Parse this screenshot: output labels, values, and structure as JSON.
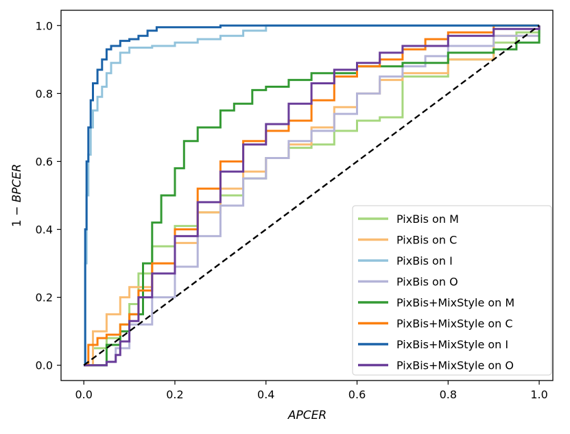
{
  "chart_data": {
    "type": "line",
    "title": "",
    "xlabel": "APCER",
    "ylabel_prefix": "1 − ",
    "ylabel_italic": "BPCER",
    "xlim": [
      -0.05,
      1.03
    ],
    "ylim": [
      -0.045,
      1.045
    ],
    "xticks": [
      0.0,
      0.2,
      0.4,
      0.6,
      0.8,
      1.0
    ],
    "yticks": [
      0.0,
      0.2,
      0.4,
      0.6,
      0.8,
      1.0
    ],
    "xtick_labels": [
      "0.0",
      "0.2",
      "0.4",
      "0.6",
      "0.8",
      "1.0"
    ],
    "ytick_labels": [
      "0.0",
      "0.2",
      "0.4",
      "0.6",
      "0.8",
      "1.0"
    ],
    "grid": false,
    "legend_position": "lower-right",
    "chance_line": {
      "x": [
        0,
        1
      ],
      "y": [
        0,
        1
      ],
      "color": "#000000",
      "style": "dashed"
    },
    "series": [
      {
        "name": "PixBis on M",
        "color": "#a6d77e",
        "x": [
          0,
          0.02,
          0.05,
          0.08,
          0.1,
          0.12,
          0.15,
          0.2,
          0.25,
          0.3,
          0.35,
          0.4,
          0.45,
          0.5,
          0.55,
          0.6,
          0.65,
          0.7,
          0.8,
          0.9,
          0.95,
          1
        ],
        "y": [
          0,
          0.05,
          0.08,
          0.12,
          0.18,
          0.27,
          0.35,
          0.41,
          0.45,
          0.5,
          0.55,
          0.61,
          0.64,
          0.65,
          0.69,
          0.72,
          0.73,
          0.85,
          0.9,
          0.95,
          0.98,
          1
        ]
      },
      {
        "name": "PixBis on C",
        "color": "#f9bc72",
        "x": [
          0,
          0.02,
          0.05,
          0.08,
          0.1,
          0.15,
          0.2,
          0.25,
          0.3,
          0.35,
          0.4,
          0.45,
          0.5,
          0.55,
          0.6,
          0.65,
          0.7,
          0.8,
          0.9,
          1
        ],
        "y": [
          0,
          0.1,
          0.15,
          0.2,
          0.23,
          0.3,
          0.36,
          0.45,
          0.52,
          0.57,
          0.61,
          0.65,
          0.7,
          0.76,
          0.8,
          0.84,
          0.86,
          0.9,
          0.97,
          1
        ]
      },
      {
        "name": "PixBis on I",
        "color": "#92c3dc",
        "x": [
          0,
          0.003,
          0.006,
          0.01,
          0.015,
          0.02,
          0.03,
          0.04,
          0.05,
          0.06,
          0.08,
          0.1,
          0.15,
          0.2,
          0.25,
          0.3,
          0.35,
          0.4,
          0.6,
          0.8,
          1
        ],
        "y": [
          0,
          0.3,
          0.5,
          0.62,
          0.7,
          0.75,
          0.79,
          0.82,
          0.86,
          0.89,
          0.92,
          0.935,
          0.94,
          0.95,
          0.96,
          0.97,
          0.985,
          1,
          1,
          1,
          1
        ]
      },
      {
        "name": "PixBis on O",
        "color": "#b4b4d8",
        "x": [
          0,
          0.05,
          0.07,
          0.1,
          0.15,
          0.2,
          0.25,
          0.3,
          0.35,
          0.4,
          0.45,
          0.5,
          0.55,
          0.6,
          0.65,
          0.7,
          0.75,
          0.8,
          0.9,
          1
        ],
        "y": [
          0,
          0.01,
          0.05,
          0.12,
          0.2,
          0.29,
          0.38,
          0.47,
          0.55,
          0.61,
          0.66,
          0.69,
          0.74,
          0.8,
          0.85,
          0.88,
          0.91,
          0.94,
          0.97,
          1
        ]
      },
      {
        "name": "PixBis+MixStyle on M",
        "color": "#339a33",
        "x": [
          0,
          0.05,
          0.08,
          0.1,
          0.13,
          0.15,
          0.17,
          0.2,
          0.22,
          0.25,
          0.27,
          0.3,
          0.33,
          0.37,
          0.4,
          0.45,
          0.5,
          0.55,
          0.6,
          0.65,
          0.7,
          0.8,
          0.9,
          0.95,
          1
        ],
        "y": [
          0,
          0.06,
          0.1,
          0.15,
          0.3,
          0.42,
          0.5,
          0.58,
          0.66,
          0.7,
          0.7,
          0.75,
          0.77,
          0.81,
          0.82,
          0.84,
          0.86,
          0.86,
          0.88,
          0.88,
          0.89,
          0.92,
          0.93,
          0.95,
          1
        ]
      },
      {
        "name": "PixBis+MixStyle on C",
        "color": "#fb7f0e",
        "x": [
          0,
          0.01,
          0.03,
          0.05,
          0.08,
          0.1,
          0.12,
          0.15,
          0.2,
          0.25,
          0.3,
          0.35,
          0.4,
          0.45,
          0.5,
          0.55,
          0.6,
          0.65,
          0.7,
          0.75,
          0.8,
          0.9,
          1
        ],
        "y": [
          0,
          0.06,
          0.08,
          0.09,
          0.12,
          0.15,
          0.22,
          0.3,
          0.4,
          0.52,
          0.6,
          0.66,
          0.69,
          0.72,
          0.78,
          0.85,
          0.88,
          0.9,
          0.93,
          0.96,
          0.98,
          1,
          1
        ]
      },
      {
        "name": "PixBis+MixStyle on I",
        "color": "#1a62a8",
        "x": [
          0,
          0.003,
          0.006,
          0.01,
          0.015,
          0.02,
          0.03,
          0.04,
          0.05,
          0.06,
          0.08,
          0.1,
          0.12,
          0.14,
          0.16,
          0.2,
          0.3,
          0.4,
          0.6,
          0.8,
          1
        ],
        "y": [
          0,
          0.4,
          0.6,
          0.7,
          0.78,
          0.83,
          0.87,
          0.9,
          0.93,
          0.94,
          0.955,
          0.96,
          0.97,
          0.985,
          0.995,
          0.995,
          1,
          1,
          1,
          1,
          1
        ]
      },
      {
        "name": "PixBis+MixStyle on O",
        "color": "#6a3d9a",
        "x": [
          0,
          0.05,
          0.07,
          0.08,
          0.1,
          0.12,
          0.15,
          0.2,
          0.25,
          0.3,
          0.35,
          0.4,
          0.45,
          0.5,
          0.55,
          0.6,
          0.65,
          0.7,
          0.8,
          0.9,
          1
        ],
        "y": [
          0,
          0.01,
          0.03,
          0.07,
          0.13,
          0.2,
          0.27,
          0.38,
          0.48,
          0.57,
          0.65,
          0.71,
          0.77,
          0.83,
          0.87,
          0.89,
          0.92,
          0.94,
          0.97,
          0.99,
          1
        ]
      }
    ]
  }
}
